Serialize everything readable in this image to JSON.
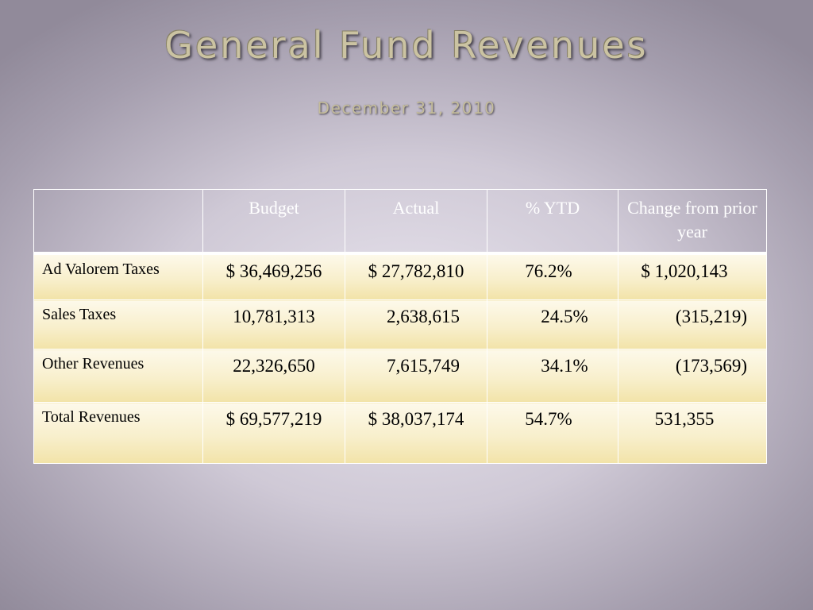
{
  "slide": {
    "title": "General Fund Revenues",
    "subtitle": "December 31, 2010"
  },
  "table": {
    "headers": [
      "",
      "Budget",
      "Actual",
      "% YTD",
      "Change from prior year"
    ],
    "rows": [
      {
        "label": "Ad Valorem Taxes",
        "budget": "$ 36,469,256",
        "actual": "$ 27,782,810",
        "ytd": "76.2%",
        "change": "$ 1,020,143"
      },
      {
        "label": "Sales Taxes",
        "budget": "10,781,313",
        "actual": "2,638,615",
        "ytd": "24.5%",
        "change": "(315,219)"
      },
      {
        "label": "Other Revenues",
        "budget": "22,326,650",
        "actual": "7,615,749",
        "ytd": "34.1%",
        "change": "(173,569)"
      },
      {
        "label": "Total Revenues",
        "budget": "$ 69,577,219",
        "actual": "$ 38,037,174",
        "ytd": "54.7%",
        "change": "531,355"
      }
    ]
  }
}
